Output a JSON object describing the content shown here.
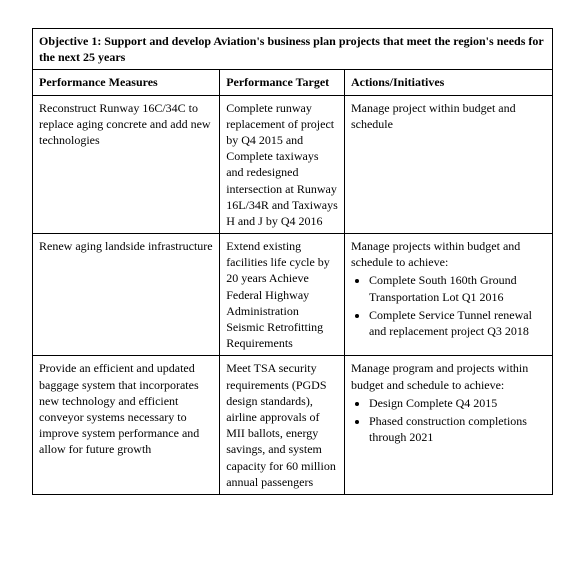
{
  "table": {
    "border_color": "#000000",
    "background_color": "#ffffff",
    "font_family": "Times New Roman",
    "font_size_pt": 9,
    "objective_title": "Objective 1:   Support and develop Aviation's business plan projects that meet the region's needs for the next 25 years",
    "columns": {
      "measures": "Performance Measures",
      "target": "Performance Target",
      "actions": "Actions/Initiatives"
    },
    "rows": [
      {
        "measure": "Reconstruct Runway 16C/34C to replace aging concrete and add new technologies",
        "target": "Complete runway replacement of project by Q4 2015 and Complete taxiways and redesigned intersection at Runway 16L/34R and Taxiways H and J by Q4 2016",
        "action_text": "Manage project within budget and schedule",
        "action_bullets": []
      },
      {
        "measure": "Renew aging landside infrastructure",
        "target": "Extend existing facilities life cycle by 20 years Achieve Federal Highway Administration Seismic Retrofitting Requirements",
        "action_text": "Manage projects within budget and schedule to achieve:",
        "action_bullets": [
          "Complete South 160th Ground Transportation Lot Q1 2016",
          "Complete Service Tunnel renewal and replacement project Q3 2018"
        ]
      },
      {
        "measure": "Provide an efficient and updated baggage system that incorporates new technology and efficient conveyor systems necessary to improve system performance and allow for future growth",
        "target": "Meet TSA security requirements (PGDS design standards), airline approvals of MII ballots, energy savings, and system capacity for 60 million annual passengers",
        "action_text": "Manage program and projects within budget and schedule to achieve:",
        "action_bullets": [
          "Design Complete Q4 2015",
          "Phased construction completions through 2021"
        ]
      }
    ]
  }
}
